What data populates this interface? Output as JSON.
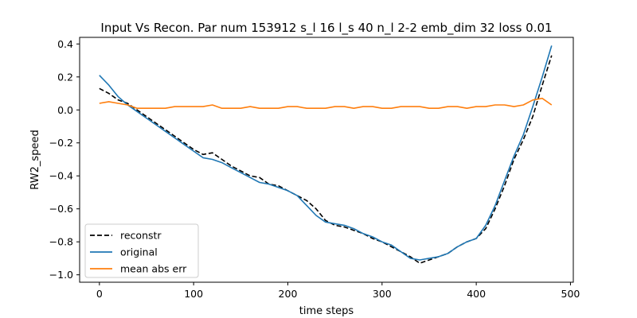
{
  "chart_data": {
    "type": "line",
    "title": "Input Vs Recon. Par num 153912 s_l 16 l_s 40 n_l 2-2 emb_dim 32 loss 0.01",
    "xlabel": "time steps",
    "ylabel": "RW2_speed",
    "xlim": [
      -21,
      503
    ],
    "ylim": [
      -1.045,
      0.44
    ],
    "xticks": [
      0,
      100,
      200,
      300,
      400,
      500
    ],
    "yticks": [
      -1.0,
      -0.8,
      -0.6,
      -0.4,
      -0.2,
      0.0,
      0.2,
      0.4
    ],
    "grid": false,
    "legend_position": "lower-left",
    "x": [
      0,
      10,
      20,
      30,
      40,
      50,
      60,
      70,
      80,
      90,
      100,
      110,
      120,
      130,
      140,
      150,
      160,
      170,
      180,
      190,
      200,
      210,
      220,
      230,
      240,
      250,
      260,
      270,
      280,
      290,
      300,
      310,
      320,
      330,
      340,
      350,
      360,
      370,
      380,
      390,
      400,
      410,
      420,
      430,
      440,
      450,
      460,
      470,
      480
    ],
    "series": [
      {
        "name": "reconstr",
        "color": "#000000",
        "dash": "dashed",
        "values": [
          0.13,
          0.1,
          0.06,
          0.04,
          0.0,
          -0.04,
          -0.08,
          -0.12,
          -0.16,
          -0.2,
          -0.24,
          -0.27,
          -0.26,
          -0.3,
          -0.34,
          -0.37,
          -0.4,
          -0.41,
          -0.45,
          -0.46,
          -0.49,
          -0.52,
          -0.55,
          -0.6,
          -0.67,
          -0.7,
          -0.71,
          -0.73,
          -0.75,
          -0.78,
          -0.8,
          -0.83,
          -0.86,
          -0.89,
          -0.93,
          -0.91,
          -0.89,
          -0.87,
          -0.83,
          -0.8,
          -0.78,
          -0.72,
          -0.6,
          -0.46,
          -0.3,
          -0.18,
          -0.04,
          0.15,
          0.33
        ]
      },
      {
        "name": "original",
        "color": "#1f77b4",
        "dash": "solid",
        "values": [
          0.21,
          0.15,
          0.08,
          0.03,
          -0.01,
          -0.05,
          -0.09,
          -0.13,
          -0.17,
          -0.21,
          -0.25,
          -0.29,
          -0.3,
          -0.32,
          -0.35,
          -0.38,
          -0.41,
          -0.44,
          -0.45,
          -0.47,
          -0.49,
          -0.52,
          -0.58,
          -0.64,
          -0.68,
          -0.69,
          -0.7,
          -0.72,
          -0.75,
          -0.77,
          -0.8,
          -0.82,
          -0.86,
          -0.9,
          -0.91,
          -0.9,
          -0.89,
          -0.87,
          -0.83,
          -0.8,
          -0.78,
          -0.7,
          -0.58,
          -0.43,
          -0.28,
          -0.15,
          0.02,
          0.2,
          0.39
        ]
      },
      {
        "name": "mean abs err",
        "color": "#ff7f0e",
        "dash": "solid",
        "values": [
          0.04,
          0.05,
          0.04,
          0.03,
          0.01,
          0.01,
          0.01,
          0.01,
          0.02,
          0.02,
          0.02,
          0.02,
          0.03,
          0.01,
          0.01,
          0.01,
          0.02,
          0.01,
          0.01,
          0.01,
          0.02,
          0.02,
          0.01,
          0.01,
          0.01,
          0.02,
          0.02,
          0.01,
          0.02,
          0.02,
          0.01,
          0.01,
          0.02,
          0.02,
          0.02,
          0.01,
          0.01,
          0.02,
          0.02,
          0.01,
          0.02,
          0.02,
          0.03,
          0.03,
          0.02,
          0.03,
          0.06,
          0.07,
          0.03
        ]
      }
    ]
  }
}
